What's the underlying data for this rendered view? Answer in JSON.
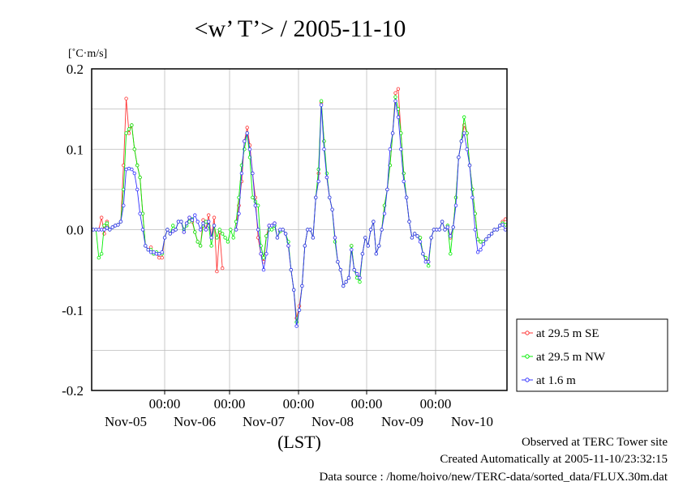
{
  "chart_data": {
    "type": "line",
    "title": "<w’ T’> / 2005-11-10",
    "ylabel": "[˚C·m/s]",
    "xlabel": "(LST)",
    "ylim": [
      -0.2,
      0.2
    ],
    "y_ticks": [
      "0.2",
      "0.1",
      "0.0",
      "-0.1",
      "-0.2"
    ],
    "x_time_ticks": [
      "00:00",
      "00:00",
      "00:00",
      "00:00",
      "00:00"
    ],
    "x_date_labels": [
      "Nov-05",
      "Nov-06",
      "Nov-07",
      "Nov-08",
      "Nov-09",
      "Nov-10"
    ],
    "grid": true,
    "legend_position": "right",
    "series": [
      {
        "name": "at 29.5 m SE",
        "color": "#ff3333",
        "values": [
          0.0,
          0.0,
          0.0,
          0.015,
          -0.005,
          0.01,
          0.0,
          0.003,
          0.005,
          0.006,
          0.01,
          0.08,
          0.163,
          0.12,
          0.13,
          0.1,
          0.08,
          0.065,
          0.02,
          -0.02,
          -0.025,
          -0.022,
          -0.03,
          -0.03,
          -0.035,
          -0.035,
          -0.01,
          0.0,
          -0.005,
          -0.002,
          0.0,
          0.01,
          0.01,
          -0.003,
          0.008,
          0.015,
          0.01,
          -0.003,
          -0.015,
          -0.02,
          0.012,
          0.0,
          0.018,
          -0.01,
          0.015,
          -0.052,
          -0.003,
          -0.048,
          null,
          null,
          null,
          null,
          0.0,
          0.03,
          0.06,
          0.11,
          0.127,
          0.105,
          0.07,
          0.04,
          -0.01,
          -0.03,
          -0.04,
          -0.008,
          0.005,
          0.005,
          0.008,
          -0.01,
          -0.002,
          0.0,
          -0.005,
          -0.02,
          -0.05,
          -0.075,
          -0.11,
          -0.095,
          -0.07,
          -0.02,
          0.0,
          0.0,
          -0.01,
          0.04,
          0.07,
          0.158,
          0.11,
          0.065,
          0.04,
          0.025,
          -0.01,
          -0.04,
          -0.05,
          -0.07,
          -0.065,
          -0.06,
          -0.02,
          -0.05,
          -0.055,
          -0.06,
          -0.03,
          -0.01,
          -0.02,
          0.0,
          0.01,
          -0.03,
          -0.02,
          0.0,
          0.03,
          0.05,
          0.08,
          0.12,
          0.17,
          0.175,
          0.12,
          0.07,
          0.04,
          0.01,
          -0.01,
          -0.005,
          -0.008,
          -0.01,
          -0.03,
          -0.035,
          -0.04,
          -0.01,
          0.0,
          0.0,
          0.0,
          0.01,
          0.0,
          0.005,
          -0.01,
          0.003,
          0.04,
          0.09,
          0.11,
          0.13,
          0.12,
          0.08,
          0.05,
          0.02,
          -0.012,
          -0.015,
          -0.015,
          -0.012,
          -0.008,
          -0.005,
          0.0,
          0.0,
          0.005,
          0.01,
          0.013
        ]
      },
      {
        "name": "at 29.5 m NW",
        "color": "#00ee00",
        "values": [
          0.0,
          0.0,
          -0.035,
          -0.03,
          0.005,
          0.008,
          0.0,
          0.003,
          0.005,
          0.006,
          0.01,
          0.05,
          0.12,
          0.125,
          0.13,
          0.1,
          0.08,
          0.065,
          0.02,
          -0.02,
          -0.025,
          -0.025,
          -0.03,
          -0.028,
          -0.03,
          -0.03,
          -0.01,
          0.0,
          -0.005,
          0.005,
          0.0,
          0.01,
          0.01,
          0.0,
          0.005,
          0.01,
          0.013,
          -0.003,
          -0.015,
          -0.02,
          0.005,
          0.01,
          0.005,
          -0.02,
          0.005,
          -0.01,
          0.0,
          -0.005,
          -0.01,
          -0.015,
          0.0,
          -0.01,
          0.01,
          0.04,
          0.08,
          0.1,
          0.12,
          0.09,
          0.04,
          0.035,
          0.03,
          -0.02,
          -0.035,
          -0.008,
          0.0,
          0.0,
          0.005,
          -0.01,
          -0.002,
          0.0,
          -0.005,
          -0.015,
          -0.05,
          -0.075,
          -0.115,
          -0.1,
          -0.07,
          -0.02,
          0.0,
          0.0,
          -0.01,
          0.04,
          0.075,
          0.16,
          0.11,
          0.07,
          0.04,
          0.025,
          -0.015,
          -0.04,
          -0.05,
          -0.07,
          -0.065,
          -0.06,
          -0.02,
          -0.05,
          -0.06,
          -0.065,
          -0.03,
          -0.01,
          -0.02,
          0.0,
          0.01,
          -0.03,
          -0.02,
          0.0,
          0.03,
          0.05,
          0.08,
          0.12,
          0.165,
          0.15,
          0.12,
          0.07,
          0.04,
          0.01,
          -0.01,
          -0.005,
          -0.008,
          -0.01,
          -0.03,
          -0.035,
          -0.045,
          -0.01,
          0.0,
          0.0,
          0.0,
          0.01,
          0.0,
          0.005,
          -0.03,
          0.003,
          0.04,
          0.09,
          0.11,
          0.14,
          0.12,
          0.08,
          0.05,
          0.02,
          -0.012,
          -0.015,
          -0.015,
          -0.012,
          -0.008,
          -0.005,
          0.0,
          0.0,
          0.005,
          0.008,
          0.006
        ]
      },
      {
        "name": "at 1.6 m",
        "color": "#3333ff",
        "values": [
          0.0,
          0.0,
          0.0,
          0.0,
          0.0,
          0.002,
          0.0,
          0.003,
          0.005,
          0.006,
          0.01,
          0.03,
          0.075,
          0.076,
          0.075,
          0.07,
          0.05,
          0.02,
          0.0,
          -0.02,
          -0.025,
          -0.028,
          -0.028,
          -0.03,
          -0.03,
          -0.028,
          -0.01,
          0.0,
          -0.005,
          -0.002,
          0.0,
          0.01,
          0.01,
          -0.003,
          0.008,
          0.015,
          0.012,
          0.018,
          0.01,
          0.0,
          0.008,
          0.0,
          0.01,
          -0.01,
          0.005,
          null,
          null,
          null,
          null,
          null,
          null,
          null,
          0.0,
          0.02,
          0.07,
          0.11,
          0.12,
          0.1,
          0.07,
          0.03,
          0.0,
          -0.03,
          -0.05,
          -0.03,
          0.005,
          0.005,
          0.008,
          -0.01,
          0.0,
          0.0,
          -0.005,
          -0.02,
          -0.05,
          -0.075,
          -0.12,
          -0.1,
          -0.07,
          -0.02,
          0.0,
          0.0,
          -0.01,
          0.04,
          0.06,
          0.155,
          0.1,
          0.065,
          0.04,
          0.025,
          -0.01,
          -0.04,
          -0.05,
          -0.07,
          -0.065,
          -0.06,
          -0.025,
          -0.05,
          -0.055,
          -0.06,
          -0.03,
          -0.01,
          -0.02,
          0.0,
          0.01,
          -0.03,
          -0.02,
          0.0,
          0.02,
          0.05,
          0.1,
          0.12,
          0.16,
          0.14,
          0.1,
          0.06,
          0.04,
          0.01,
          -0.01,
          -0.005,
          -0.008,
          -0.015,
          -0.03,
          -0.04,
          -0.04,
          -0.01,
          0.0,
          0.0,
          0.0,
          0.01,
          0.0,
          0.003,
          -0.008,
          0.003,
          0.03,
          0.09,
          0.11,
          0.12,
          0.1,
          0.08,
          0.04,
          0.0,
          -0.028,
          -0.025,
          -0.018,
          -0.012,
          -0.008,
          -0.005,
          0.0,
          0.0,
          0.005,
          0.006,
          0.0
        ]
      }
    ]
  },
  "footer": {
    "line1": "Observed at TERC Tower site",
    "line2": "Created Automatically at 2005-11-10/23:32:15",
    "line3": "Data source : /home/hoivo/new/TERC-data/sorted_data/FLUX.30m.dat"
  }
}
